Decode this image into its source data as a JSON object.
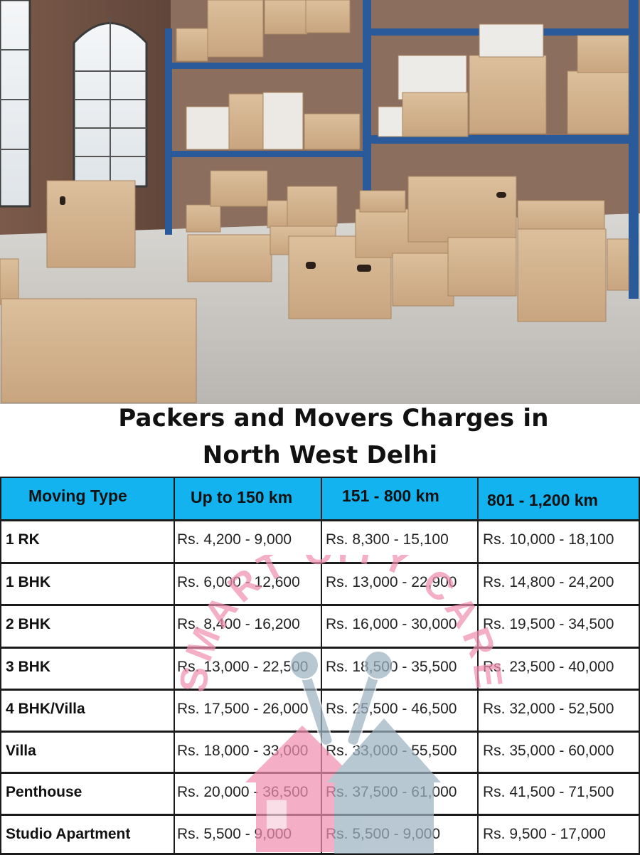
{
  "title": {
    "line1": "Packers and Movers Charges in",
    "line2": "North West Delhi"
  },
  "table": {
    "headers": [
      "Moving Type",
      "Up to 150 km",
      "151 - 800 km",
      "801 - 1,200 km"
    ],
    "rows": [
      [
        "1 RK",
        "Rs. 4,200 - 9,000",
        "Rs. 8,300 - 15,100",
        "Rs. 10,000 - 18,100"
      ],
      [
        "1 BHK",
        "Rs. 6,000 - 12,600",
        "Rs. 13,000 - 22,900",
        "Rs. 14,800 - 24,200"
      ],
      [
        "2 BHK",
        "Rs. 8,400 - 16,200",
        "Rs. 16,000 - 30,000",
        "Rs. 19,500 - 34,500"
      ],
      [
        "3 BHK",
        "Rs. 13,000 - 22,500",
        "Rs. 18,500 - 35,500",
        "Rs. 23,500 - 40,000"
      ],
      [
        "4 BHK/Villa",
        "Rs. 17,500 - 26,000",
        "Rs. 25,500 - 46,500",
        "Rs. 32,000 - 52,500"
      ],
      [
        "Villa",
        "Rs. 18,000 - 33,000",
        "Rs. 33,000 - 55,500",
        "Rs. 35,000 - 60,000"
      ],
      [
        "Penthouse",
        "Rs. 20,000 - 36,500",
        "Rs. 37,500 - 61,000",
        "Rs. 41,500 - 71,500"
      ],
      [
        "Studio Apartment",
        "Rs. 5,500 - 9,000",
        "Rs. 5,500 - 9,000",
        "Rs. 9,500 - 17,000"
      ]
    ]
  },
  "watermark": {
    "text": "SMART CITY CARE",
    "icon": "house-wrench-logo"
  },
  "colors": {
    "header_bg": "#13b3ef",
    "watermark_pink": "#f08fb0",
    "watermark_gray": "#9eb3c2"
  }
}
